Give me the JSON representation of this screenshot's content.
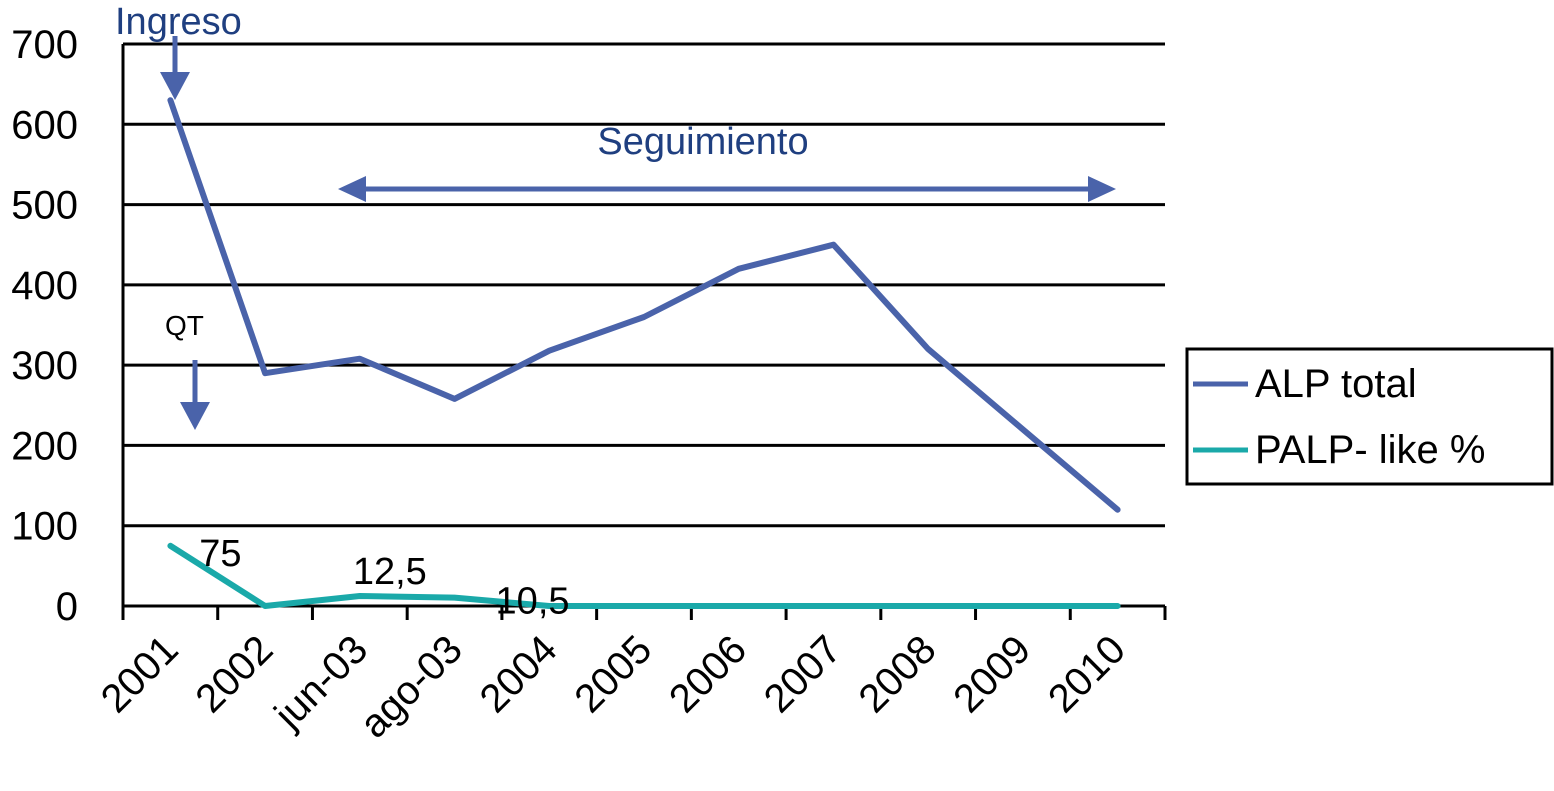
{
  "chart_data": {
    "type": "line",
    "categories": [
      "2001",
      "2002",
      "jun-03",
      "ago-03",
      "2004",
      "2005",
      "2006",
      "2007",
      "2008",
      "2009",
      "2010"
    ],
    "series": [
      {
        "name": "ALP total",
        "color": "#4a63aa",
        "values": [
          630,
          290,
          308,
          258,
          318,
          360,
          420,
          450,
          320,
          220,
          120
        ]
      },
      {
        "name": "PALP- like %",
        "color": "#1aa9a9",
        "values": [
          75,
          0,
          12.5,
          10.5,
          0,
          0,
          0,
          0,
          0,
          0,
          0
        ]
      }
    ],
    "data_labels": [
      {
        "series": 1,
        "index": 0,
        "text": "75"
      },
      {
        "series": 1,
        "index": 2,
        "text": "12,5"
      },
      {
        "series": 1,
        "index": 3,
        "text": "10,5"
      }
    ],
    "annotations": {
      "ingreso": "Ingreso",
      "qt": "QT",
      "seguimiento": "Seguimiento"
    },
    "annotation_color": "#1f3f80",
    "arrow_color": "#4a63aa",
    "ylim": [
      0,
      700
    ],
    "yticks": [
      0,
      100,
      200,
      300,
      400,
      500,
      600,
      700
    ],
    "grid": true,
    "legend_position": "right"
  }
}
